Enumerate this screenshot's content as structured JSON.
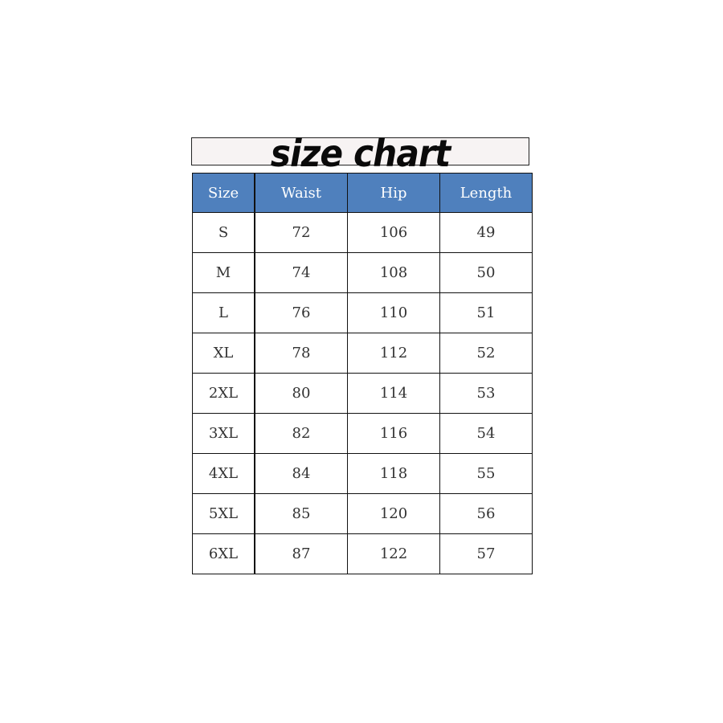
{
  "title": "size chart",
  "colors": {
    "header_bg": "#4f80bd",
    "header_text": "#ffffff"
  },
  "table": {
    "headers": [
      "Size",
      "Waist",
      "Hip",
      "Length"
    ],
    "rows": [
      [
        "S",
        "72",
        "106",
        "49"
      ],
      [
        "M",
        "74",
        "108",
        "50"
      ],
      [
        "L",
        "76",
        "110",
        "51"
      ],
      [
        "XL",
        "78",
        "112",
        "52"
      ],
      [
        "2XL",
        "80",
        "114",
        "53"
      ],
      [
        "3XL",
        "82",
        "116",
        "54"
      ],
      [
        "4XL",
        "84",
        "118",
        "55"
      ],
      [
        "5XL",
        "85",
        "120",
        "56"
      ],
      [
        "6XL",
        "87",
        "122",
        "57"
      ]
    ]
  }
}
